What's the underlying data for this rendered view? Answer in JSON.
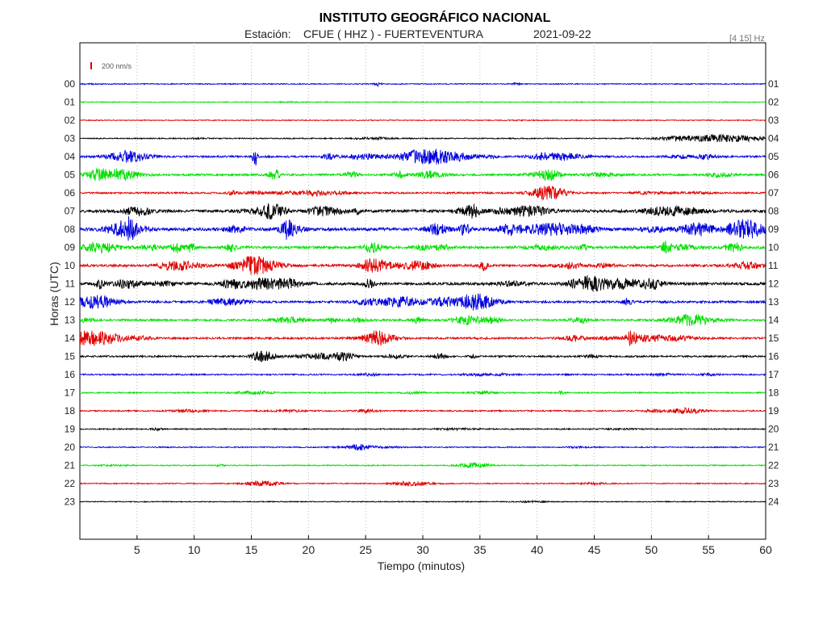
{
  "header": {
    "title": "INSTITUTO GEOGRÁFICO NACIONAL",
    "station_label": "Estación:",
    "station": "CFUE ( HHZ ) - FUERTEVENTURA",
    "date": "2021-09-22",
    "filter": "[4 15] Hz"
  },
  "scale_bar": {
    "label": "200 nm/s",
    "color": "#e00000"
  },
  "chart_data": {
    "type": "line",
    "xlabel": "Tiempo (minutos)",
    "ylabel": "Horas (UTC)",
    "xlim": [
      0,
      60
    ],
    "x_ticks": [
      "5",
      "10",
      "15",
      "20",
      "25",
      "30",
      "35",
      "40",
      "45",
      "50",
      "55",
      "60"
    ],
    "grid": true,
    "left_labels": [
      "00",
      "01",
      "02",
      "03",
      "04",
      "05",
      "06",
      "07",
      "08",
      "09",
      "10",
      "11",
      "12",
      "13",
      "14",
      "15",
      "16",
      "17",
      "18",
      "19",
      "20",
      "21",
      "22",
      "23"
    ],
    "right_labels": [
      "01",
      "02",
      "03",
      "04",
      "05",
      "06",
      "07",
      "08",
      "09",
      "10",
      "11",
      "12",
      "13",
      "14",
      "15",
      "16",
      "17",
      "18",
      "19",
      "20",
      "21",
      "22",
      "23",
      "24"
    ],
    "colors": [
      "#0000e0",
      "#00e000",
      "#e00000",
      "#000000"
    ],
    "activity_level": [
      0.08,
      0.05,
      0.06,
      0.12,
      0.35,
      0.4,
      0.3,
      0.65,
      0.75,
      0.6,
      0.55,
      0.6,
      0.45,
      0.4,
      0.4,
      0.3,
      0.22,
      0.18,
      0.2,
      0.12,
      0.12,
      0.1,
      0.1,
      0.06
    ],
    "events": [
      {
        "hour": 0,
        "minute": 26.0,
        "amp": 0.45,
        "dur": 0.3
      },
      {
        "hour": 3,
        "minute": 56.0,
        "amp": 0.8,
        "dur": 4.0
      },
      {
        "hour": 4,
        "minute": 4.0,
        "amp": 1.0,
        "dur": 1.5
      },
      {
        "hour": 4,
        "minute": 15.3,
        "amp": 2.2,
        "dur": 0.2
      },
      {
        "hour": 4,
        "minute": 31.0,
        "amp": 1.6,
        "dur": 3.0
      },
      {
        "hour": 4,
        "minute": 42.0,
        "amp": 0.8,
        "dur": 2.0
      },
      {
        "hour": 5,
        "minute": 2.5,
        "amp": 1.0,
        "dur": 2.0
      },
      {
        "hour": 5,
        "minute": 17.0,
        "amp": 1.3,
        "dur": 0.5
      },
      {
        "hour": 5,
        "minute": 41.0,
        "amp": 0.9,
        "dur": 1.0
      },
      {
        "hour": 6,
        "minute": 41.0,
        "amp": 1.5,
        "dur": 1.5
      },
      {
        "hour": 10,
        "minute": 15.0,
        "amp": 1.4,
        "dur": 1.5
      },
      {
        "hour": 10,
        "minute": 25.5,
        "amp": 1.3,
        "dur": 1.0
      },
      {
        "hour": 12,
        "minute": 34.5,
        "amp": 1.2,
        "dur": 2.0
      },
      {
        "hour": 12,
        "minute": 28.0,
        "amp": 1.0,
        "dur": 2.0
      },
      {
        "hour": 13,
        "minute": 53.5,
        "amp": 1.2,
        "dur": 2.0
      },
      {
        "hour": 14,
        "minute": 1.0,
        "amp": 1.6,
        "dur": 2.5
      },
      {
        "hour": 14,
        "minute": 48.2,
        "amp": 1.4,
        "dur": 0.5
      },
      {
        "hour": 15,
        "minute": 16.0,
        "amp": 1.2,
        "dur": 1.0
      },
      {
        "hour": 15,
        "minute": 23.0,
        "amp": 0.9,
        "dur": 1.0
      },
      {
        "hour": 18,
        "minute": 53.0,
        "amp": 0.6,
        "dur": 1.5
      },
      {
        "hour": 20,
        "minute": 24.5,
        "amp": 0.6,
        "dur": 1.0
      },
      {
        "hour": 21,
        "minute": 34.5,
        "amp": 0.5,
        "dur": 1.5
      },
      {
        "hour": 22,
        "minute": 16.0,
        "amp": 0.5,
        "dur": 1.5
      },
      {
        "hour": 22,
        "minute": 29.0,
        "amp": 0.5,
        "dur": 1.5
      }
    ]
  }
}
